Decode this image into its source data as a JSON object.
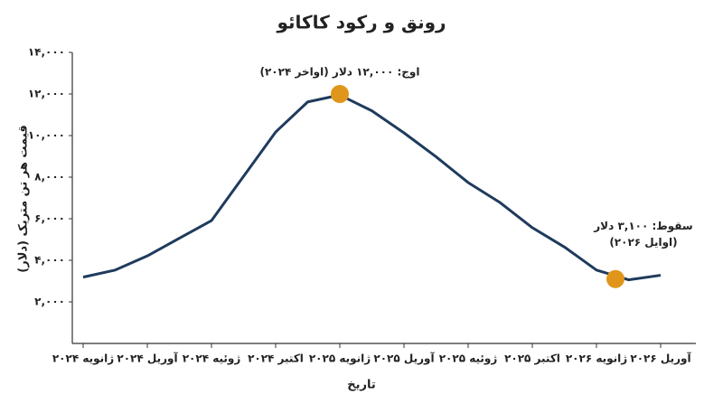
{
  "chart_data": {
    "type": "line",
    "title": "رونق و رکود کاکائو",
    "x_label": "تاریخ",
    "y_label": "قیمت هر تن متریک (دلار)",
    "categories": [
      "ژانویه ۲۰۲۴",
      null,
      "آوریل ۲۰۲۴",
      null,
      "ژوئیه ۲۰۲۴",
      null,
      "اکتبر ۲۰۲۴",
      null,
      "ژانویه ۲۰۲۵",
      null,
      "آوریل ۲۰۲۵",
      null,
      "ژوئیه ۲۰۲۵",
      null,
      "اکتبر ۲۰۲۵",
      null,
      "ژانویه ۲۰۲۶",
      null,
      "آوریل ۲۰۲۶"
    ],
    "series": [
      {
        "color": "#1f3b5c",
        "values": [
          3190,
          3530,
          4210,
          5060,
          5910,
          8040,
          10170,
          11620,
          11950,
          11190,
          10130,
          8980,
          7740,
          6770,
          5570,
          4640,
          3530,
          3060,
          3280
        ]
      }
    ],
    "ylim": [
      0,
      14000
    ],
    "yticks": [
      {
        "value": 2000,
        "label": "۲,۰۰۰"
      },
      {
        "value": 4000,
        "label": "۴,۰۰۰"
      },
      {
        "value": 6000,
        "label": "۶,۰۰۰"
      },
      {
        "value": 8000,
        "label": "۸,۰۰۰"
      },
      {
        "value": 10000,
        "label": "۱۰,۰۰۰"
      },
      {
        "value": 12000,
        "label": "۱۲,۰۰۰"
      },
      {
        "value": 14000,
        "label": "۱۴,۰۰۰"
      }
    ],
    "annotations": [
      {
        "lines": [
          "اوج: ۱۲,۰۰۰ دلار (اواخر ۲۰۲۴)"
        ],
        "value": 12000,
        "color": "#e0961a"
      },
      {
        "lines": [
          "سقوط: ۳,۱۰۰ دلار",
          "(اوایل ۲۰۲۶)"
        ],
        "value": 3100,
        "color": "#e0961a"
      }
    ]
  }
}
